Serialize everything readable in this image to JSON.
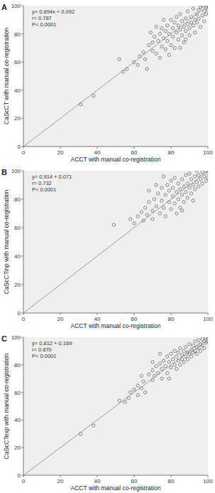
{
  "chart_data": [
    {
      "type": "scatter",
      "title": "A",
      "x_label": "ACCT with manual co-registration",
      "y_label": "CaScCT with manual co-registration",
      "annotations": [
        "y= 0.894x + 0.092",
        "r= 0.787",
        "P< 0.0001"
      ],
      "xlim": [
        0,
        100
      ],
      "ylim": [
        0,
        100
      ],
      "xticks": [
        0,
        20,
        40,
        60,
        80,
        100
      ],
      "yticks": [
        0,
        20,
        40,
        60,
        80,
        100
      ],
      "grid": false,
      "series": [
        {
          "type": "scatter",
          "marker": "circle",
          "color": "#444444",
          "x": [
            31,
            38,
            54,
            56,
            52,
            60,
            62,
            63,
            65,
            66,
            68,
            70,
            70,
            71,
            72,
            73,
            74,
            75,
            75,
            76,
            77,
            77,
            78,
            78,
            79,
            80,
            80,
            81,
            81,
            82,
            82,
            83,
            83,
            84,
            84,
            85,
            85,
            86,
            86,
            87,
            87,
            88,
            88,
            89,
            89,
            90,
            90,
            91,
            91,
            92,
            92,
            93,
            93,
            94,
            94,
            95,
            95,
            96,
            96,
            97,
            97,
            98,
            98,
            99,
            99,
            100,
            100,
            76,
            72,
            69,
            85,
            88,
            79,
            67,
            74
          ],
          "values": [
            30,
            36,
            53,
            55,
            62,
            60,
            58,
            64,
            67,
            62,
            72,
            68,
            74,
            78,
            66,
            75,
            80,
            71,
            84,
            77,
            69,
            82,
            86,
            75,
            80,
            90,
            72,
            84,
            78,
            88,
            70,
            81,
            92,
            76,
            86,
            83,
            94,
            79,
            89,
            85,
            74,
            91,
            82,
            87,
            96,
            84,
            79,
            92,
            88,
            86,
            98,
            90,
            81,
            94,
            88,
            97,
            91,
            85,
            99,
            93,
            100,
            96,
            89,
            99,
            94,
            97,
            100,
            90,
            85,
            81,
            70,
            76,
            65,
            55,
            63
          ]
        },
        {
          "type": "line",
          "color": "#888888",
          "line_style": "solid",
          "x": [
            0,
            100
          ],
          "values": [
            0,
            100
          ]
        }
      ]
    },
    {
      "type": "scatter",
      "title": "B",
      "x_label": "ACCT with manual co-registration",
      "y_label": "CaScCTinp with manual co-registration",
      "annotations": [
        "y= 0.914 + 0.071",
        "r= 0.732",
        "P< 0.0001"
      ],
      "xlim": [
        0,
        100
      ],
      "ylim": [
        0,
        100
      ],
      "xticks": [
        0,
        20,
        40,
        60,
        80,
        100
      ],
      "yticks": [
        0,
        20,
        40,
        60,
        80,
        100
      ],
      "grid": false,
      "series": [
        {
          "type": "scatter",
          "marker": "circle",
          "color": "#444444",
          "x": [
            49,
            58,
            60,
            62,
            64,
            65,
            66,
            67,
            68,
            70,
            70,
            71,
            72,
            73,
            74,
            75,
            75,
            76,
            77,
            77,
            78,
            79,
            79,
            80,
            80,
            81,
            81,
            82,
            82,
            83,
            84,
            84,
            85,
            85,
            86,
            86,
            87,
            87,
            88,
            88,
            89,
            89,
            90,
            90,
            91,
            91,
            92,
            92,
            93,
            93,
            94,
            94,
            95,
            95,
            96,
            97,
            97,
            98,
            99,
            99,
            100,
            100,
            72,
            68,
            83,
            76,
            86
          ],
          "values": [
            62,
            66,
            63,
            68,
            71,
            65,
            74,
            69,
            78,
            72,
            66,
            80,
            75,
            84,
            70,
            79,
            88,
            74,
            83,
            68,
            90,
            78,
            86,
            73,
            93,
            82,
            88,
            77,
            95,
            85,
            80,
            91,
            87,
            74,
            94,
            83,
            89,
            78,
            97,
            85,
            91,
            81,
            88,
            98,
            84,
            94,
            90,
            79,
            96,
            87,
            92,
            100,
            89,
            97,
            94,
            91,
            99,
            96,
            93,
            100,
            98,
            95,
            90,
            86,
            70,
            96,
            72
          ]
        },
        {
          "type": "line",
          "color": "#888888",
          "line_style": "solid",
          "x": [
            0,
            100
          ],
          "values": [
            0,
            100
          ]
        }
      ]
    },
    {
      "type": "scatter",
      "title": "C",
      "x_label": "ACCT with manual co-registration",
      "y_label": "CaScCTexp with manual co-registration",
      "annotations": [
        "y= 0.812 + 0.169",
        "r= 0.870",
        "P< 0.0001"
      ],
      "xlim": [
        0,
        100
      ],
      "ylim": [
        0,
        100
      ],
      "xticks": [
        0,
        20,
        40,
        60,
        80,
        100
      ],
      "yticks": [
        0,
        20,
        40,
        60,
        80,
        100
      ],
      "grid": false,
      "series": [
        {
          "type": "scatter",
          "marker": "circle",
          "color": "#444444",
          "x": [
            31,
            38,
            52,
            55,
            57,
            58,
            60,
            62,
            62,
            64,
            65,
            66,
            68,
            70,
            70,
            71,
            72,
            73,
            74,
            75,
            75,
            76,
            77,
            78,
            78,
            79,
            80,
            80,
            81,
            82,
            82,
            83,
            83,
            84,
            84,
            85,
            85,
            86,
            86,
            87,
            87,
            88,
            88,
            89,
            89,
            90,
            90,
            91,
            91,
            92,
            92,
            93,
            93,
            94,
            94,
            95,
            95,
            96,
            96,
            97,
            97,
            98,
            98,
            99,
            99,
            100,
            100,
            64,
            70,
            74,
            79
          ],
          "values": [
            30,
            36,
            54,
            53,
            56,
            60,
            62,
            58,
            65,
            63,
            68,
            60,
            73,
            69,
            76,
            72,
            79,
            74,
            81,
            77,
            70,
            83,
            79,
            86,
            74,
            82,
            88,
            78,
            84,
            80,
            90,
            86,
            77,
            89,
            83,
            92,
            80,
            87,
            84,
            90,
            82,
            93,
            86,
            89,
            84,
            95,
            88,
            91,
            86,
            94,
            89,
            97,
            90,
            93,
            88,
            98,
            92,
            95,
            90,
            99,
            94,
            97,
            92,
            100,
            96,
            99,
            97,
            72,
            82,
            88,
            70
          ]
        },
        {
          "type": "line",
          "color": "#888888",
          "line_style": "solid",
          "x": [
            0,
            100
          ],
          "values": [
            0,
            100
          ]
        }
      ]
    }
  ]
}
